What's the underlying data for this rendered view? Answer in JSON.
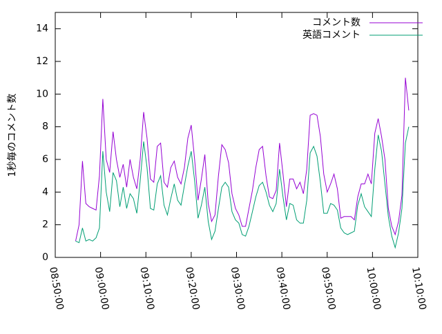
{
  "chart_data": {
    "type": "line",
    "y_label": "1秒毎のコメント数",
    "x": [
      "08:54:30",
      "08:55:15",
      "08:56:00",
      "08:56:45",
      "08:57:30",
      "08:58:15",
      "08:59:00",
      "08:59:45",
      "09:00:30",
      "09:01:15",
      "09:02:00",
      "09:02:45",
      "09:03:30",
      "09:04:15",
      "09:05:00",
      "09:05:45",
      "09:06:30",
      "09:07:15",
      "09:08:00",
      "09:08:45",
      "09:09:30",
      "09:10:15",
      "09:11:00",
      "09:11:45",
      "09:12:30",
      "09:13:15",
      "09:14:00",
      "09:14:45",
      "09:15:30",
      "09:16:15",
      "09:17:00",
      "09:17:45",
      "09:18:30",
      "09:19:15",
      "09:20:00",
      "09:20:45",
      "09:21:30",
      "09:22:15",
      "09:23:00",
      "09:23:45",
      "09:24:30",
      "09:25:15",
      "09:26:00",
      "09:26:45",
      "09:27:30",
      "09:28:15",
      "09:29:00",
      "09:29:45",
      "09:30:30",
      "09:31:15",
      "09:32:00",
      "09:32:45",
      "09:33:30",
      "09:34:15",
      "09:35:00",
      "09:35:45",
      "09:36:30",
      "09:37:15",
      "09:38:00",
      "09:38:45",
      "09:39:30",
      "09:40:15",
      "09:41:00",
      "09:41:45",
      "09:42:30",
      "09:43:15",
      "09:44:00",
      "09:44:45",
      "09:45:30",
      "09:46:15",
      "09:47:00",
      "09:47:45",
      "09:48:30",
      "09:49:15",
      "09:50:00",
      "09:50:45",
      "09:51:30",
      "09:52:15",
      "09:53:00",
      "09:53:45",
      "09:54:30",
      "09:55:15",
      "09:56:00",
      "09:56:45",
      "09:57:30",
      "09:58:15",
      "09:59:00",
      "09:59:45",
      "10:00:30",
      "10:01:15",
      "10:02:00",
      "10:02:45",
      "10:03:30",
      "10:04:15",
      "10:05:00",
      "10:05:45",
      "10:06:30",
      "10:07:15",
      "10:08:00"
    ],
    "series": [
      {
        "name": "コメント数",
        "color": "#9400d3",
        "values": [
          1.0,
          2.0,
          5.9,
          3.3,
          3.1,
          3.0,
          2.9,
          5.0,
          9.7,
          6.0,
          5.2,
          7.7,
          6.0,
          4.9,
          5.7,
          4.3,
          6.0,
          4.9,
          4.2,
          6.0,
          8.9,
          7.3,
          4.8,
          4.6,
          6.8,
          7.0,
          4.6,
          4.3,
          5.5,
          5.9,
          4.9,
          4.5,
          5.5,
          7.3,
          8.1,
          6.0,
          3.5,
          4.8,
          6.3,
          3.3,
          2.2,
          2.6,
          5.0,
          6.9,
          6.6,
          5.8,
          3.9,
          3.0,
          2.6,
          1.9,
          1.9,
          3.0,
          4.1,
          5.5,
          6.6,
          6.8,
          5.0,
          3.7,
          3.6,
          4.1,
          7.0,
          5.1,
          3.1,
          4.8,
          4.8,
          4.2,
          4.6,
          3.9,
          5.4,
          8.7,
          8.8,
          8.7,
          7.4,
          5.1,
          4.0,
          4.5,
          5.1,
          4.2,
          2.4,
          2.5,
          2.5,
          2.5,
          2.3,
          3.7,
          4.5,
          4.5,
          5.1,
          4.5,
          7.6,
          8.5,
          7.4,
          6.0,
          3.0,
          1.9,
          1.4,
          2.2,
          3.8,
          11.0,
          9.0
        ]
      },
      {
        "name": "英語コメント",
        "color": "#009e73",
        "values": [
          1.0,
          0.9,
          1.8,
          1.0,
          1.1,
          1.0,
          1.2,
          1.8,
          6.5,
          4.0,
          2.8,
          5.2,
          4.7,
          3.1,
          4.3,
          3.0,
          3.9,
          3.6,
          2.7,
          4.7,
          7.1,
          5.5,
          3.0,
          2.9,
          4.5,
          5.0,
          3.2,
          2.6,
          3.6,
          4.5,
          3.5,
          3.2,
          4.4,
          5.6,
          6.5,
          4.7,
          2.4,
          3.2,
          4.3,
          2.2,
          1.1,
          1.6,
          3.0,
          4.3,
          4.6,
          4.3,
          2.8,
          2.3,
          2.1,
          1.4,
          1.3,
          1.9,
          2.8,
          3.7,
          4.4,
          4.6,
          4.0,
          3.2,
          2.8,
          3.3,
          5.4,
          3.7,
          2.3,
          3.3,
          3.2,
          2.3,
          2.1,
          2.1,
          3.5,
          6.4,
          6.8,
          6.2,
          4.6,
          2.7,
          2.7,
          3.3,
          3.2,
          2.9,
          1.8,
          1.5,
          1.4,
          1.5,
          1.6,
          3.2,
          3.9,
          3.1,
          2.8,
          2.5,
          5.4,
          7.5,
          6.5,
          4.5,
          2.5,
          1.3,
          0.6,
          1.5,
          3.0,
          7.0,
          8.0
        ]
      }
    ],
    "xlim": [
      "08:50:00",
      "10:10:00"
    ],
    "xticks": [
      "08:50:00",
      "09:00:00",
      "09:10:00",
      "09:20:00",
      "09:30:00",
      "09:40:00",
      "09:50:00",
      "10:00:00",
      "10:10:00"
    ],
    "ylim": [
      0,
      15
    ],
    "yticks": [
      0,
      2,
      4,
      6,
      8,
      10,
      12,
      14
    ],
    "legend": "top-right"
  }
}
